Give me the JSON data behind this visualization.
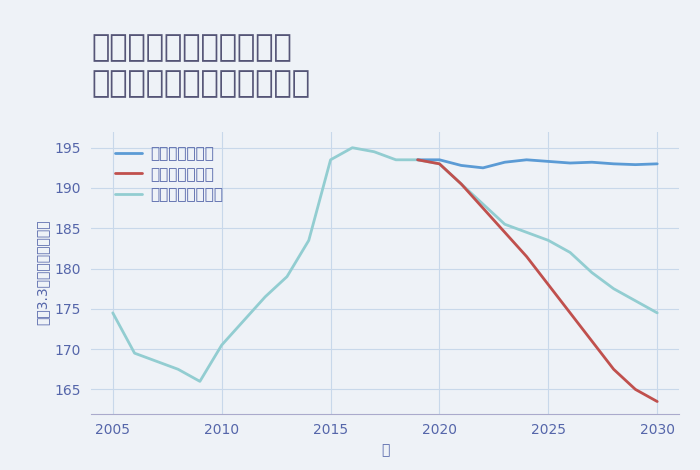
{
  "title": "兵庫県西宮市門戸東町の\n中古マンションの価格推移",
  "xlabel": "年",
  "ylabel": "坪（3.3㎡）単価（万円）",
  "background_color": "#eef2f7",
  "plot_background": "#eef2f7",
  "ylim": [
    162,
    197
  ],
  "yticks": [
    165,
    170,
    175,
    180,
    185,
    190,
    195
  ],
  "xlim": [
    2004,
    2031
  ],
  "xticks": [
    2005,
    2010,
    2015,
    2020,
    2025,
    2030
  ],
  "good_scenario": {
    "label": "グッドシナリオ",
    "color": "#5b9bd5",
    "x": [
      2019,
      2020,
      2021,
      2022,
      2023,
      2024,
      2025,
      2026,
      2027,
      2028,
      2029,
      2030
    ],
    "y": [
      193.5,
      193.5,
      192.8,
      192.5,
      193.2,
      193.5,
      193.3,
      193.1,
      193.2,
      193.0,
      192.9,
      193.0
    ]
  },
  "bad_scenario": {
    "label": "バッドシナリオ",
    "color": "#c0504d",
    "x": [
      2019,
      2020,
      2021,
      2022,
      2023,
      2024,
      2025,
      2026,
      2027,
      2028,
      2029,
      2030
    ],
    "y": [
      193.5,
      193.0,
      190.5,
      187.5,
      184.5,
      181.5,
      178.0,
      174.5,
      171.0,
      167.5,
      165.0,
      163.5
    ]
  },
  "normal_scenario": {
    "label": "ノーマルシナリオ",
    "color": "#92cdd1",
    "x": [
      2005,
      2006,
      2007,
      2008,
      2009,
      2010,
      2011,
      2012,
      2013,
      2014,
      2015,
      2016,
      2017,
      2018,
      2019,
      2020,
      2021,
      2022,
      2023,
      2024,
      2025,
      2026,
      2027,
      2028,
      2029,
      2030
    ],
    "y": [
      174.5,
      169.5,
      168.5,
      167.5,
      166.0,
      170.5,
      173.5,
      176.5,
      179.0,
      183.5,
      193.5,
      195.0,
      194.5,
      193.5,
      193.5,
      193.0,
      190.5,
      188.0,
      185.5,
      184.5,
      183.5,
      182.0,
      179.5,
      177.5,
      176.0,
      174.5
    ]
  },
  "title_color": "#555577",
  "axis_color": "#5566aa",
  "tick_color": "#5566aa",
  "grid_color": "#c8d8ea",
  "title_fontsize": 22,
  "axis_label_fontsize": 10,
  "tick_fontsize": 10,
  "legend_fontsize": 11,
  "line_width": 2.0
}
